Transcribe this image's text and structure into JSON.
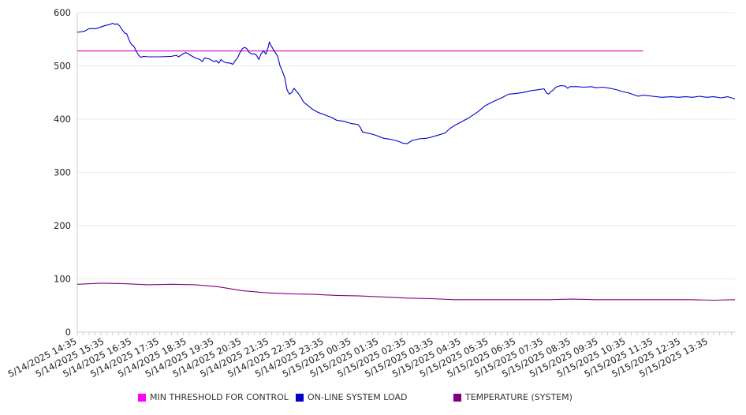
{
  "chart_data": {
    "type": "line",
    "ylim": [
      0,
      600
    ],
    "yticks": [
      0,
      100,
      200,
      300,
      400,
      500,
      600
    ],
    "xticks": [
      "5/14/2025 14:35",
      "5/14/2025 15:35",
      "5/14/2025 16:35",
      "5/14/2025 17:35",
      "5/14/2025 18:35",
      "5/14/2025 19:35",
      "5/14/2025 20:35",
      "5/14/2025 21:35",
      "5/14/2025 22:35",
      "5/14/2025 23:35",
      "5/15/2025 00:35",
      "5/15/2025 01:35",
      "5/15/2025 02:35",
      "5/15/2025 03:35",
      "5/15/2025 04:35",
      "5/15/2025 05:35",
      "5/15/2025 06:35",
      "5/15/2025 07:35",
      "5/15/2025 08:35",
      "5/15/2025 09:35",
      "5/15/2025 10:35",
      "5/15/2025 11:35",
      "5/15/2025 12:35",
      "5/15/2025 13:35"
    ],
    "x_range_hours": [
      0,
      24
    ],
    "grid": "horizontal",
    "legend_position": "bottom",
    "series": [
      {
        "name": "MIN THRESHOLD FOR CONTROL",
        "color": "#cc00cc",
        "points": [
          [
            0,
            528
          ],
          [
            24,
            528
          ]
        ]
      },
      {
        "name": "ON-LINE SYSTEM LOAD",
        "color": "#0000cc",
        "points": [
          [
            0,
            563
          ],
          [
            0.3,
            565
          ],
          [
            0.5,
            570
          ],
          [
            0.8,
            570
          ],
          [
            1.0,
            573
          ],
          [
            1.2,
            576
          ],
          [
            1.4,
            578
          ],
          [
            1.5,
            580
          ],
          [
            1.6,
            578
          ],
          [
            1.7,
            579
          ],
          [
            1.8,
            575
          ],
          [
            1.9,
            568
          ],
          [
            2.0,
            562
          ],
          [
            2.1,
            560
          ],
          [
            2.2,
            548
          ],
          [
            2.3,
            540
          ],
          [
            2.4,
            537
          ],
          [
            2.5,
            528
          ],
          [
            2.6,
            520
          ],
          [
            2.7,
            516
          ],
          [
            2.8,
            518
          ],
          [
            3.0,
            517
          ],
          [
            3.5,
            517
          ],
          [
            4.0,
            518
          ],
          [
            4.2,
            520
          ],
          [
            4.3,
            517
          ],
          [
            4.5,
            523
          ],
          [
            4.6,
            525
          ],
          [
            4.7,
            523
          ],
          [
            4.8,
            520
          ],
          [
            5.0,
            515
          ],
          [
            5.2,
            512
          ],
          [
            5.3,
            508
          ],
          [
            5.4,
            515
          ],
          [
            5.6,
            513
          ],
          [
            5.8,
            508
          ],
          [
            5.9,
            510
          ],
          [
            6.0,
            505
          ],
          [
            6.1,
            512
          ],
          [
            6.2,
            508
          ],
          [
            6.3,
            506
          ],
          [
            6.5,
            505
          ],
          [
            6.6,
            503
          ],
          [
            6.7,
            510
          ],
          [
            6.8,
            515
          ],
          [
            6.9,
            525
          ],
          [
            7.0,
            532
          ],
          [
            7.1,
            535
          ],
          [
            7.2,
            532
          ],
          [
            7.3,
            525
          ],
          [
            7.4,
            522
          ],
          [
            7.5,
            523
          ],
          [
            7.6,
            520
          ],
          [
            7.7,
            512
          ],
          [
            7.8,
            523
          ],
          [
            7.9,
            528
          ],
          [
            8.0,
            522
          ],
          [
            8.1,
            535
          ],
          [
            8.15,
            545
          ],
          [
            8.2,
            540
          ],
          [
            8.3,
            532
          ],
          [
            8.4,
            525
          ],
          [
            8.5,
            518
          ],
          [
            8.6,
            500
          ],
          [
            8.7,
            490
          ],
          [
            8.8,
            478
          ],
          [
            8.9,
            455
          ],
          [
            9.0,
            447
          ],
          [
            9.1,
            450
          ],
          [
            9.2,
            458
          ],
          [
            9.3,
            452
          ],
          [
            9.4,
            447
          ],
          [
            9.5,
            440
          ],
          [
            9.6,
            432
          ],
          [
            9.8,
            425
          ],
          [
            10.0,
            418
          ],
          [
            10.2,
            413
          ],
          [
            10.5,
            408
          ],
          [
            10.8,
            403
          ],
          [
            11.0,
            398
          ],
          [
            11.3,
            396
          ],
          [
            11.6,
            392
          ],
          [
            11.9,
            390
          ],
          [
            12.0,
            385
          ],
          [
            12.1,
            376
          ],
          [
            12.3,
            374
          ],
          [
            12.5,
            372
          ],
          [
            12.7,
            369
          ],
          [
            13.0,
            364
          ],
          [
            13.3,
            362
          ],
          [
            13.5,
            360
          ],
          [
            13.7,
            357
          ],
          [
            13.8,
            355
          ],
          [
            14.0,
            354
          ],
          [
            14.2,
            360
          ],
          [
            14.5,
            363
          ],
          [
            14.8,
            364
          ],
          [
            15.0,
            366
          ],
          [
            15.3,
            370
          ],
          [
            15.6,
            374
          ],
          [
            15.8,
            382
          ],
          [
            16.0,
            388
          ],
          [
            16.3,
            395
          ],
          [
            16.6,
            402
          ],
          [
            17.0,
            414
          ],
          [
            17.3,
            425
          ],
          [
            17.6,
            432
          ],
          [
            18.0,
            440
          ],
          [
            18.3,
            447
          ],
          [
            18.6,
            448
          ],
          [
            18.9,
            450
          ],
          [
            19.2,
            453
          ],
          [
            19.5,
            455
          ],
          [
            19.8,
            457
          ],
          [
            19.9,
            449
          ],
          [
            20.0,
            447
          ],
          [
            20.1,
            452
          ],
          [
            20.2,
            455
          ],
          [
            20.3,
            460
          ],
          [
            20.5,
            463
          ],
          [
            20.7,
            462
          ],
          [
            20.8,
            458
          ],
          [
            20.9,
            461
          ],
          [
            21.2,
            461
          ],
          [
            21.5,
            460
          ],
          [
            21.8,
            461
          ],
          [
            22.0,
            459
          ],
          [
            22.3,
            460
          ],
          [
            22.6,
            458
          ],
          [
            22.9,
            455
          ],
          [
            23.1,
            452
          ],
          [
            23.4,
            449
          ],
          [
            23.6,
            446
          ],
          [
            23.8,
            443
          ],
          [
            24.0,
            445
          ],
          [
            24.4,
            443
          ],
          [
            24.8,
            441
          ],
          [
            25.2,
            442
          ],
          [
            25.5,
            441
          ],
          [
            25.8,
            442
          ],
          [
            26.1,
            441
          ],
          [
            26.4,
            443
          ],
          [
            26.7,
            441
          ],
          [
            27.0,
            442
          ],
          [
            27.3,
            440
          ],
          [
            27.6,
            442
          ],
          [
            27.9,
            438
          ]
        ]
      },
      {
        "name": "TEMPERATURE (SYSTEM)",
        "color": "#800080",
        "points": [
          [
            0,
            90
          ],
          [
            1,
            92
          ],
          [
            2,
            91
          ],
          [
            3,
            89
          ],
          [
            4,
            90
          ],
          [
            5,
            89
          ],
          [
            6,
            85
          ],
          [
            7,
            78
          ],
          [
            8,
            74
          ],
          [
            9,
            72
          ],
          [
            10,
            71
          ],
          [
            11,
            69
          ],
          [
            12,
            68
          ],
          [
            13,
            66
          ],
          [
            14,
            64
          ],
          [
            15,
            63
          ],
          [
            16,
            61
          ],
          [
            17,
            61
          ],
          [
            18,
            61
          ],
          [
            19,
            61
          ],
          [
            20,
            61
          ],
          [
            21,
            62
          ],
          [
            22,
            61
          ],
          [
            23,
            61
          ],
          [
            24,
            61
          ],
          [
            25,
            61
          ],
          [
            26,
            61
          ],
          [
            27,
            60
          ],
          [
            27.9,
            61
          ]
        ]
      }
    ]
  }
}
